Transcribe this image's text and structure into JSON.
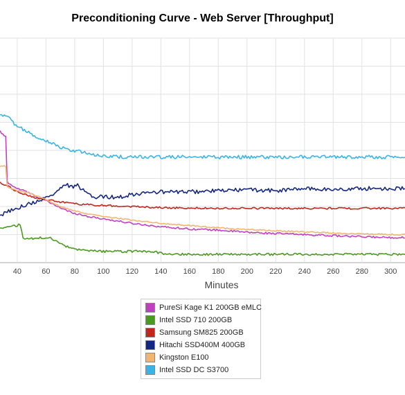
{
  "chart_data": {
    "type": "line",
    "title": "Preconditioning Curve - Web Server [Throughput]",
    "xlabel": "Minutes",
    "ylabel": "",
    "xlim": [
      28,
      310
    ],
    "ylim": [
      0,
      10
    ],
    "x_ticks": [
      40,
      60,
      80,
      100,
      120,
      140,
      160,
      180,
      200,
      220,
      240,
      260,
      280,
      300
    ],
    "grid": true,
    "legend_position": "bottom-center",
    "series": [
      {
        "name": "PureSi Kage K1 200GB eMLC",
        "color": "#c040c0",
        "points": [
          [
            28,
            5.85
          ],
          [
            30,
            5.7
          ],
          [
            32,
            5.6
          ],
          [
            33,
            3.6
          ],
          [
            36,
            3.45
          ],
          [
            40,
            3.3
          ],
          [
            45,
            3.2
          ],
          [
            50,
            3.05
          ],
          [
            55,
            2.9
          ],
          [
            60,
            2.75
          ],
          [
            65,
            2.6
          ],
          [
            70,
            2.45
          ],
          [
            75,
            2.3
          ],
          [
            80,
            2.2
          ],
          [
            90,
            2.05
          ],
          [
            100,
            1.95
          ],
          [
            120,
            1.75
          ],
          [
            140,
            1.6
          ],
          [
            160,
            1.5
          ],
          [
            180,
            1.45
          ],
          [
            200,
            1.35
          ],
          [
            220,
            1.3
          ],
          [
            240,
            1.25
          ],
          [
            260,
            1.2
          ],
          [
            280,
            1.15
          ],
          [
            300,
            1.12
          ],
          [
            310,
            1.12
          ]
        ]
      },
      {
        "name": "Intel SSD 710 200GB",
        "color": "#4a9a1e",
        "points": [
          [
            28,
            1.55
          ],
          [
            35,
            1.6
          ],
          [
            40,
            1.65
          ],
          [
            42,
            1.7
          ],
          [
            44,
            1.1
          ],
          [
            46,
            1.05
          ],
          [
            50,
            1.08
          ],
          [
            55,
            1.1
          ],
          [
            60,
            1.12
          ],
          [
            62,
            1.15
          ],
          [
            65,
            1.0
          ],
          [
            70,
            0.85
          ],
          [
            75,
            0.7
          ],
          [
            80,
            0.58
          ],
          [
            90,
            0.52
          ],
          [
            100,
            0.5
          ],
          [
            120,
            0.5
          ],
          [
            135,
            0.5
          ],
          [
            140,
            0.42
          ],
          [
            150,
            0.38
          ],
          [
            170,
            0.37
          ],
          [
            200,
            0.37
          ],
          [
            240,
            0.37
          ],
          [
            280,
            0.37
          ],
          [
            310,
            0.37
          ]
        ]
      },
      {
        "name": "Samsung SM825 200GB",
        "color": "#c0261e",
        "points": [
          [
            28,
            3.55
          ],
          [
            35,
            3.35
          ],
          [
            40,
            3.15
          ],
          [
            45,
            3.05
          ],
          [
            50,
            2.95
          ],
          [
            55,
            2.85
          ],
          [
            60,
            2.8
          ],
          [
            70,
            2.7
          ],
          [
            80,
            2.62
          ],
          [
            90,
            2.58
          ],
          [
            100,
            2.55
          ],
          [
            120,
            2.5
          ],
          [
            140,
            2.45
          ],
          [
            160,
            2.43
          ],
          [
            180,
            2.42
          ],
          [
            200,
            2.42
          ],
          [
            240,
            2.42
          ],
          [
            280,
            2.42
          ],
          [
            310,
            2.42
          ]
        ]
      },
      {
        "name": "Hitachi SSD400M 400GB",
        "color": "#142684",
        "points": [
          [
            28,
            2.1
          ],
          [
            35,
            2.3
          ],
          [
            40,
            2.45
          ],
          [
            50,
            2.65
          ],
          [
            55,
            2.75
          ],
          [
            60,
            2.9
          ],
          [
            65,
            3.05
          ],
          [
            70,
            3.3
          ],
          [
            73,
            3.5
          ],
          [
            78,
            3.35
          ],
          [
            82,
            3.45
          ],
          [
            86,
            3.2
          ],
          [
            90,
            3.0
          ],
          [
            95,
            2.9
          ],
          [
            100,
            2.95
          ],
          [
            110,
            2.9
          ],
          [
            120,
            3.05
          ],
          [
            130,
            3.1
          ],
          [
            140,
            3.15
          ],
          [
            160,
            3.15
          ],
          [
            180,
            3.2
          ],
          [
            200,
            3.25
          ],
          [
            220,
            3.2
          ],
          [
            240,
            3.3
          ],
          [
            260,
            3.25
          ],
          [
            280,
            3.3
          ],
          [
            300,
            3.3
          ],
          [
            310,
            3.3
          ]
        ]
      },
      {
        "name": "Kingston E100",
        "color": "#f2b571",
        "points": [
          [
            28,
            4.3
          ],
          [
            32,
            4.3
          ],
          [
            33,
            3.4
          ],
          [
            36,
            3.3
          ],
          [
            40,
            3.2
          ],
          [
            45,
            3.15
          ],
          [
            50,
            3.05
          ],
          [
            55,
            2.95
          ],
          [
            60,
            2.8
          ],
          [
            65,
            2.65
          ],
          [
            70,
            2.5
          ],
          [
            75,
            2.4
          ],
          [
            80,
            2.3
          ],
          [
            90,
            2.15
          ],
          [
            100,
            2.05
          ],
          [
            120,
            1.9
          ],
          [
            140,
            1.75
          ],
          [
            160,
            1.65
          ],
          [
            180,
            1.55
          ],
          [
            200,
            1.48
          ],
          [
            220,
            1.42
          ],
          [
            240,
            1.37
          ],
          [
            260,
            1.32
          ],
          [
            280,
            1.28
          ],
          [
            300,
            1.25
          ],
          [
            310,
            1.25
          ]
        ]
      },
      {
        "name": "Intel SSD DC S3700",
        "color": "#3ab4e6",
        "points": [
          [
            28,
            6.55
          ],
          [
            32,
            6.6
          ],
          [
            35,
            6.5
          ],
          [
            38,
            6.2
          ],
          [
            42,
            6.0
          ],
          [
            46,
            5.9
          ],
          [
            50,
            5.75
          ],
          [
            55,
            5.55
          ],
          [
            60,
            5.45
          ],
          [
            65,
            5.3
          ],
          [
            70,
            5.15
          ],
          [
            75,
            5.05
          ],
          [
            80,
            4.98
          ],
          [
            90,
            4.85
          ],
          [
            100,
            4.75
          ],
          [
            110,
            4.72
          ],
          [
            120,
            4.7
          ],
          [
            140,
            4.7
          ],
          [
            160,
            4.7
          ],
          [
            180,
            4.7
          ],
          [
            200,
            4.7
          ],
          [
            220,
            4.7
          ],
          [
            240,
            4.7
          ],
          [
            260,
            4.7
          ],
          [
            280,
            4.7
          ],
          [
            300,
            4.7
          ],
          [
            310,
            4.7
          ]
        ]
      }
    ]
  }
}
